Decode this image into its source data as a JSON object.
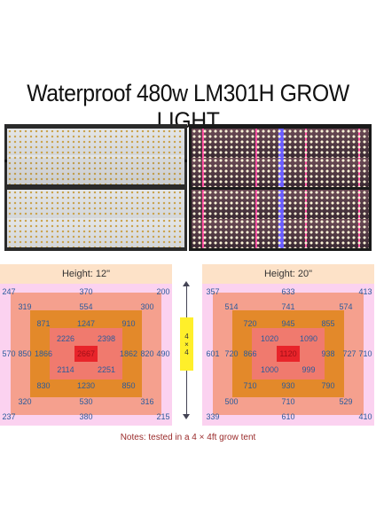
{
  "title": "Waterproof 480w LM301H GROW LIGHT",
  "left_map": {
    "header": "Height: 12\"",
    "values": {
      "outer_top": [
        "247",
        "370",
        "200"
      ],
      "outer_mid": [
        "570",
        "490"
      ],
      "outer_bottom": [
        "237",
        "380",
        "215"
      ],
      "ring1_top": [
        "319",
        "554",
        "300"
      ],
      "ring1_mid": [
        "850",
        "820"
      ],
      "ring1_bottom": [
        "320",
        "530",
        "316"
      ],
      "ring2_top": [
        "871",
        "1247",
        "910"
      ],
      "ring2_mid": [
        "1866",
        "1862"
      ],
      "ring2_bottom": [
        "830",
        "1230",
        "850"
      ],
      "ring3_top": [
        "2226",
        "2398"
      ],
      "ring3_bottom": [
        "2114",
        "2251"
      ],
      "center": "2667"
    }
  },
  "right_map": {
    "header": "Height: 20\"",
    "values": {
      "outer_top": [
        "357",
        "633",
        "413"
      ],
      "outer_mid": [
        "601",
        "710"
      ],
      "outer_bottom": [
        "339",
        "610",
        "410"
      ],
      "ring1_top": [
        "514",
        "741",
        "574"
      ],
      "ring1_mid": [
        "720",
        "727"
      ],
      "ring1_bottom": [
        "500",
        "710",
        "529"
      ],
      "ring2_top": [
        "720",
        "945",
        "855"
      ],
      "ring2_mid": [
        "866",
        "938"
      ],
      "ring2_bottom": [
        "710",
        "930",
        "790"
      ],
      "ring3_top": [
        "1020",
        "1090"
      ],
      "ring3_bottom": [
        "1000",
        "999"
      ],
      "center": "1120"
    }
  },
  "tent_label": [
    "4",
    "×",
    "4"
  ],
  "notes": "Notes:  tested in a 4 × 4ft grow tent",
  "colors": {
    "outer_zone": "#fbd2f0",
    "ring1": "#f5a08e",
    "ring2": "#e3892a",
    "ring3": "#f07a6e",
    "center": "#e8242a",
    "header_band": "#fde2c8",
    "label_box": "#ffef2a"
  }
}
